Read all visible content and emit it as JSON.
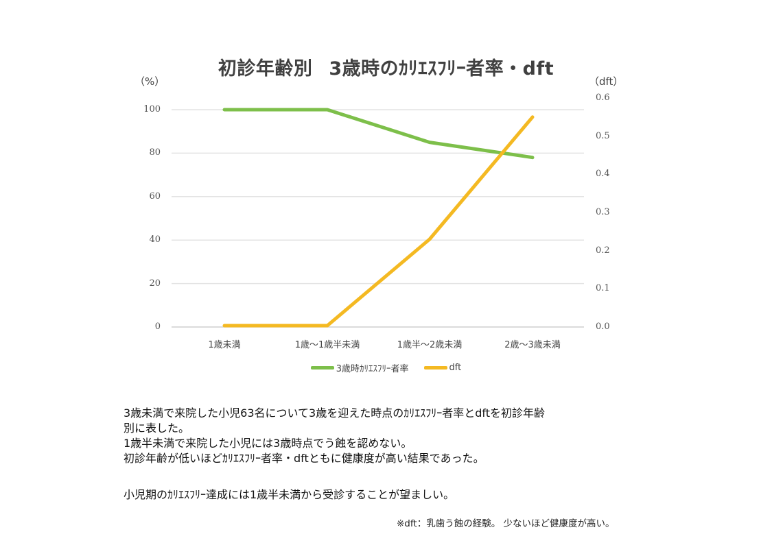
{
  "chart_data": {
    "type": "line",
    "title": "初診年齢別　3歳時のカリエスフリー者率・dft",
    "title_parts": [
      "初診年齢別",
      "3歳時のｶﾘｴｽﾌﾘｰ者率・dft"
    ],
    "categories": [
      "1歳未満",
      "1歳～1歳半未満",
      "1歳半～2歳未満",
      "2歳～3歳未満"
    ],
    "xlabel": "",
    "ylabel": "（%）",
    "y2label": "（dft）",
    "ylim": [
      0,
      100
    ],
    "y2lim": [
      0,
      0.6
    ],
    "yticks": [
      "100",
      "80",
      "60",
      "40",
      "20",
      "0"
    ],
    "y2ticks": [
      "0.6",
      "0.5",
      "0.4",
      "0.3",
      "0.2",
      "0.1",
      "0.0"
    ],
    "grid": true,
    "legend_position": "bottom",
    "series": [
      {
        "name": "3歳時ｶﾘｴｽﾌﾘｰ者率",
        "axis": "left",
        "color": "#7dbf4a",
        "values": [
          100,
          100,
          85,
          78
        ]
      },
      {
        "name": "dft",
        "axis": "right",
        "color": "#f4b922",
        "values": [
          0.0,
          0.0,
          0.23,
          0.55
        ]
      }
    ]
  },
  "description": {
    "lines": [
      "3歳未満で来院した小児63名について3歳を迎えた時点のｶﾘｴｽﾌﾘｰ者率とdftを初診年齢",
      "別に表した。",
      "1歳半未満で来院した小児には3歳時点でう蝕を認めない。",
      "初診年齢が低いほどｶﾘｴｽﾌﾘｰ者率・dftともに健康度が高い結果であった。"
    ],
    "conclusion": "小児期のｶﾘｴｽﾌﾘｰ達成には1歳半未満から受診することが望ましい。",
    "footnote": "※dft：乳歯う蝕の経験。 少ないほど健康度が高い。"
  }
}
